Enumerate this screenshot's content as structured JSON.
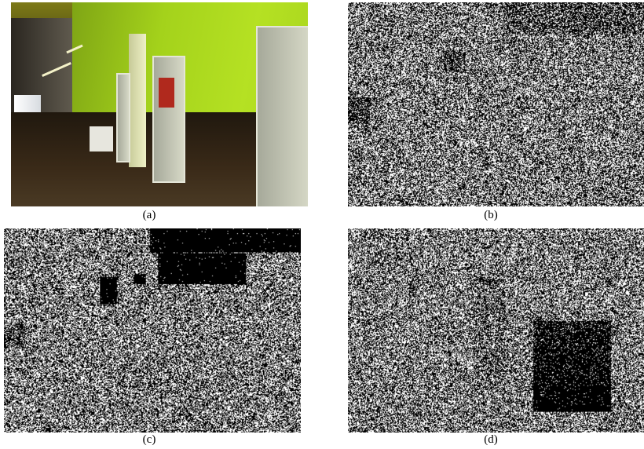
{
  "figure": {
    "panels": [
      {
        "id": "a",
        "caption": "(a)",
        "kind": "photo"
      },
      {
        "id": "b",
        "caption": "(b)",
        "kind": "noise-map"
      },
      {
        "id": "c",
        "caption": "(c)",
        "kind": "noise-map"
      },
      {
        "id": "d",
        "caption": "(d)",
        "kind": "noise-map"
      }
    ]
  }
}
